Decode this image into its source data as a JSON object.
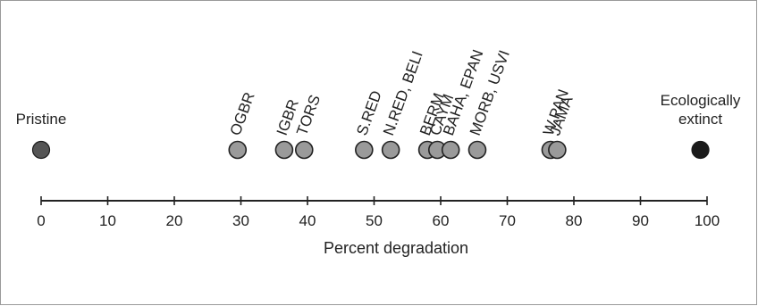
{
  "chart_data": {
    "type": "scatter",
    "title": "",
    "xlabel": "Percent degradation",
    "ylabel": "",
    "xlim": [
      0,
      100
    ],
    "xticks": [
      0,
      10,
      20,
      30,
      40,
      50,
      60,
      70,
      80,
      90,
      100
    ],
    "grid": false,
    "points": [
      {
        "label": "OGBR",
        "x": 29.5
      },
      {
        "label": "IGBR",
        "x": 36.5
      },
      {
        "label": "TORS",
        "x": 39.5
      },
      {
        "label": "S.RED",
        "x": 48.5
      },
      {
        "label": "N.RED, BELI",
        "x": 52.5
      },
      {
        "label": "BERM",
        "x": 58
      },
      {
        "label": "CAYM",
        "x": 59.5
      },
      {
        "label": "BAHA, EPAN",
        "x": 61.5
      },
      {
        "label": "MORB, USVI",
        "x": 65.5
      },
      {
        "label": "W.PAN",
        "x": 76.5
      },
      {
        "label": "JAMA",
        "x": 77.5
      }
    ],
    "endpoints": [
      {
        "label": "Pristine",
        "x": 0,
        "color": "#555555"
      },
      {
        "label": "Ecologically extinct",
        "x": 99,
        "color": "#1b1b1b"
      }
    ],
    "colors": {
      "point_fill": "#9a9a9a",
      "point_stroke": "#222222"
    }
  }
}
